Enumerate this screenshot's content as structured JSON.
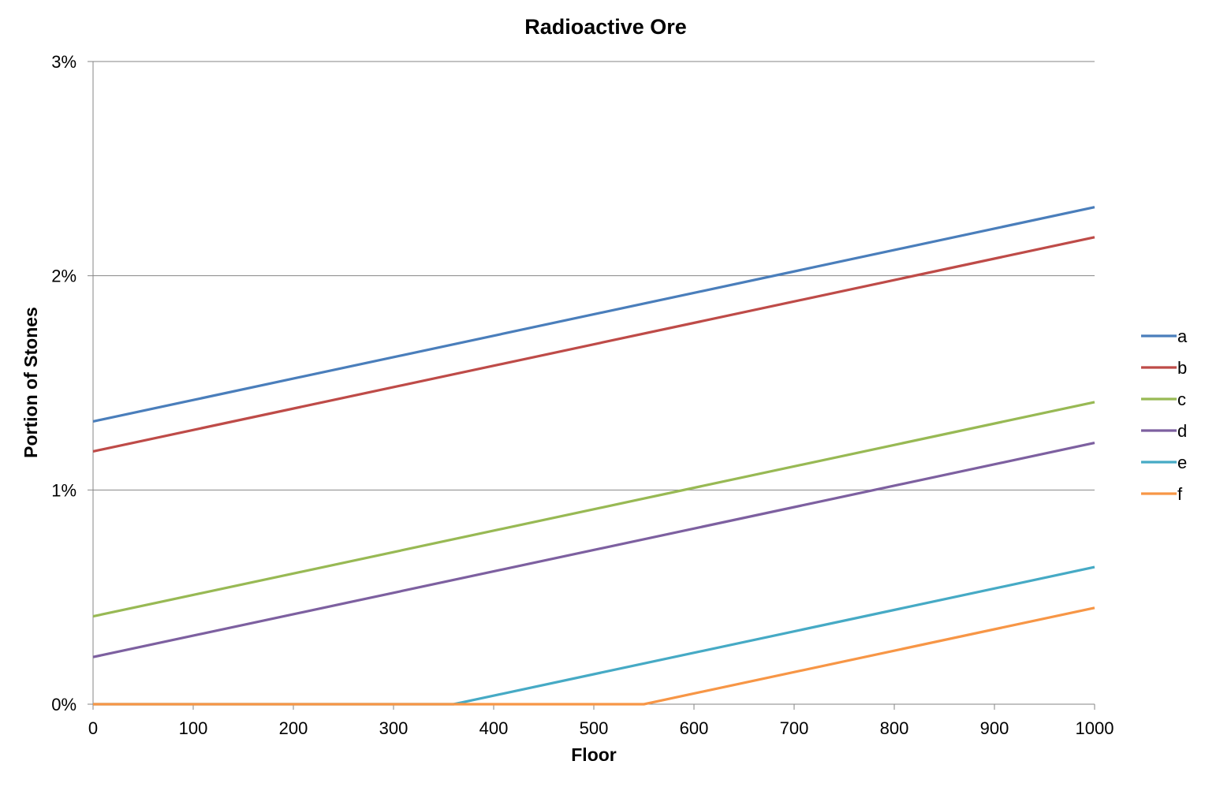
{
  "chart_data": {
    "type": "line",
    "title": "Radioactive Ore",
    "xlabel": "Floor",
    "ylabel": "Portion of Stones",
    "xlim": [
      0,
      1000
    ],
    "ylim": [
      0,
      0.03
    ],
    "x_ticks": [
      0,
      100,
      200,
      300,
      400,
      500,
      600,
      700,
      800,
      900,
      1000
    ],
    "x_tick_labels": [
      "0",
      "100",
      "200",
      "300",
      "400",
      "500",
      "600",
      "700",
      "800",
      "900",
      "1000"
    ],
    "y_ticks": [
      0,
      0.01,
      0.02,
      0.03
    ],
    "y_tick_labels": [
      "0%",
      "1%",
      "2%",
      "3%"
    ],
    "grid": "horizontal",
    "legend_position": "right",
    "series": [
      {
        "name": "a",
        "color": "#4a7ebb",
        "x": [
          0,
          1000
        ],
        "y": [
          0.0132,
          0.0232
        ]
      },
      {
        "name": "b",
        "color": "#be4b48",
        "x": [
          0,
          1000
        ],
        "y": [
          0.0118,
          0.0218
        ]
      },
      {
        "name": "c",
        "color": "#98b954",
        "x": [
          0,
          1000
        ],
        "y": [
          0.0041,
          0.0141
        ]
      },
      {
        "name": "d",
        "color": "#7d60a0",
        "x": [
          0,
          1000
        ],
        "y": [
          0.0022,
          0.0122
        ]
      },
      {
        "name": "e",
        "color": "#46aac5",
        "x": [
          0,
          360,
          1000
        ],
        "y": [
          0,
          0,
          0.0064
        ]
      },
      {
        "name": "f",
        "color": "#f79646",
        "x": [
          0,
          550,
          1000
        ],
        "y": [
          0,
          0,
          0.0045
        ]
      }
    ]
  }
}
